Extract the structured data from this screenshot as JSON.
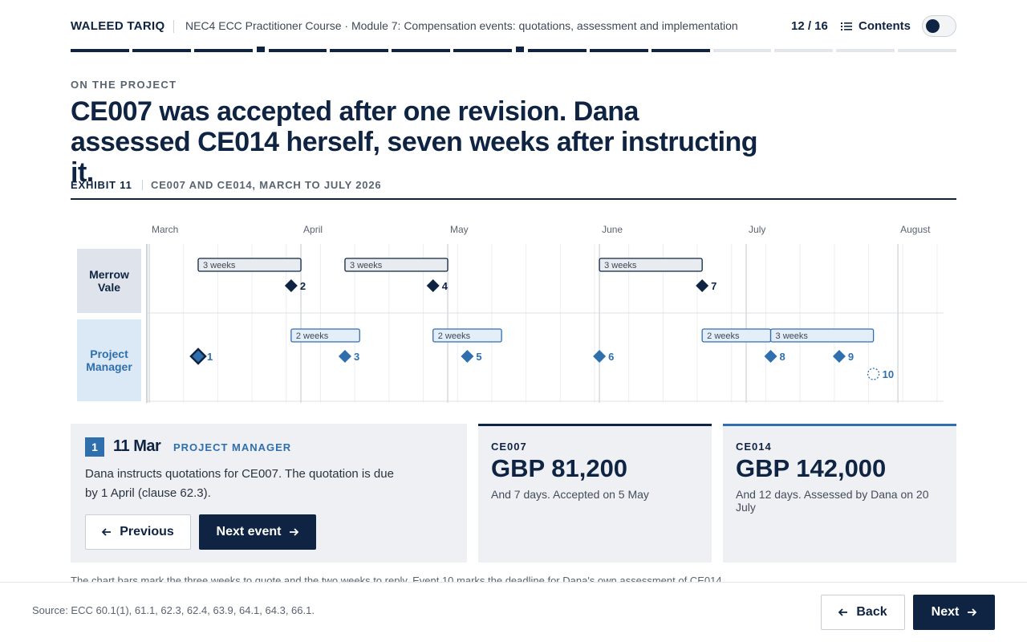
{
  "header": {
    "author": "WALEED TARIQ",
    "course": "NEC4 ECC Practitioner Course · Module 7: Compensation events: quotations, assessment and implementation",
    "progress": "12 / 16",
    "contents": "Contents"
  },
  "kicker": "ON THE PROJECT",
  "headline": "CE007 was accepted after one revision. Dana assessed CE014 herself, seven weeks after instructing it.",
  "exhibit": {
    "number": "EXHIBIT 11",
    "title": "CE007 AND CE014, MARCH TO JULY 2026"
  },
  "timeline": {
    "xlim": [
      0,
      162
    ],
    "xticks": [
      {
        "value": 0,
        "label": "March"
      },
      {
        "value": 31,
        "label": "April"
      },
      {
        "value": 61,
        "label": "May"
      },
      {
        "value": 92,
        "label": "June"
      },
      {
        "value": 122,
        "label": "July"
      },
      {
        "value": 153,
        "label": "August"
      }
    ],
    "lanes": [
      {
        "name": "Merrow Vale",
        "color": "#0f2442",
        "fill": "#dfe4ec"
      },
      {
        "name": "Project Manager",
        "color": "#2f6fad",
        "fill": "#dbe8f5"
      }
    ],
    "spans": [
      {
        "label": "3 weeks",
        "lane": 0,
        "start": 10,
        "end": 31
      },
      {
        "label": "3 weeks",
        "lane": 0,
        "start": 40,
        "end": 61
      },
      {
        "label": "3 weeks",
        "lane": 0,
        "start": 92,
        "end": 113
      },
      {
        "label": "2 weeks",
        "lane": 1,
        "start": 29,
        "end": 43
      },
      {
        "label": "2 weeks",
        "lane": 1,
        "start": 58,
        "end": 72
      },
      {
        "label": "2 weeks",
        "lane": 1,
        "start": 113,
        "end": 127
      },
      {
        "label": "3 weeks",
        "lane": 1,
        "start": 127,
        "end": 148
      }
    ],
    "events": [
      {
        "label": "1",
        "lane": 1,
        "day": 10,
        "selected": true
      },
      {
        "label": "2",
        "lane": 0,
        "day": 29
      },
      {
        "label": "3",
        "lane": 1,
        "day": 40
      },
      {
        "label": "4",
        "lane": 0,
        "day": 58
      },
      {
        "label": "5",
        "lane": 1,
        "day": 65
      },
      {
        "label": "6",
        "lane": 1,
        "day": 92
      },
      {
        "label": "7",
        "lane": 0,
        "day": 113
      },
      {
        "label": "8",
        "lane": 1,
        "day": 127
      },
      {
        "label": "9",
        "lane": 1,
        "day": 141
      },
      {
        "label": "10",
        "lane": 1,
        "day": 148,
        "dashed": true
      }
    ]
  },
  "detail": {
    "number": "1",
    "date": "11 Mar",
    "lane": "PROJECT MANAGER",
    "text": "Dana instructs quotations for CE007. The quotation is due by 1 April (clause 62.3).",
    "previous": "Previous",
    "next": "Next event"
  },
  "cards": [
    {
      "code": "CE007",
      "amount": "GBP 81,200",
      "note": "And 7 days. Accepted on 5 May",
      "color": "#0f2442"
    },
    {
      "code": "CE014",
      "amount": "GBP 142,000",
      "note": "And 12 days. Assessed by Dana on 20 July",
      "color": "#2f6fad"
    }
  ],
  "footnote": "The chart bars mark the three weeks to quote and the two weeks to reply. Event 10 marks the deadline for Dana's own assessment of CE014.",
  "footer": {
    "source": "Source: ECC 60.1(1), 61.1, 62.3, 62.4, 63.9, 64.1, 64.3, 66.1.",
    "back": "Back",
    "next": "Next"
  }
}
